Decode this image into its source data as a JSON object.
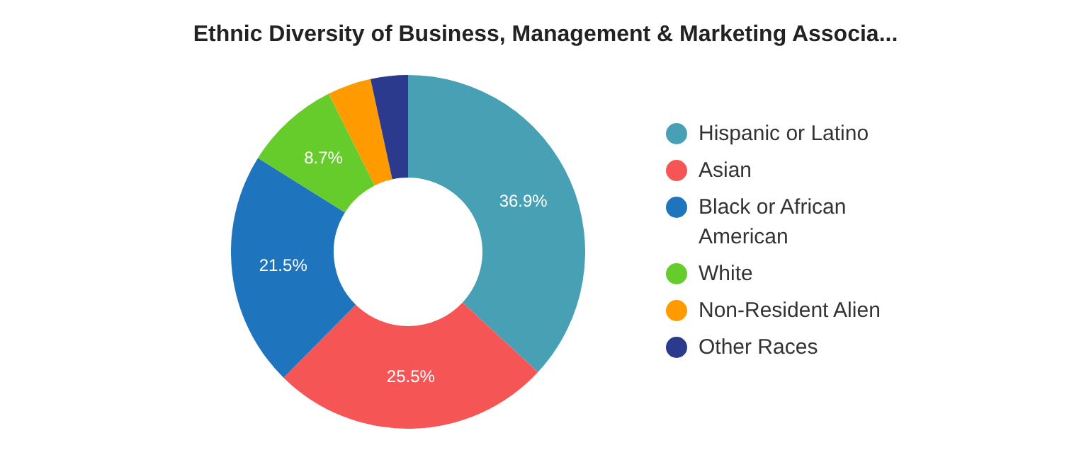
{
  "chart_data": {
    "type": "donut",
    "title": "Ethnic Diversity of Business, Management & Marketing Associa...",
    "categories": [
      "Hispanic or Latino",
      "Asian",
      "Black or African American",
      "White",
      "Non-Resident Alien",
      "Other Races"
    ],
    "values": [
      36.9,
      25.5,
      21.5,
      8.7,
      4.0,
      3.4
    ],
    "value_labels": [
      "36.9%",
      "25.5%",
      "21.5%",
      "8.7%",
      null,
      null
    ],
    "colors": [
      "#48a0b4",
      "#f55555",
      "#1f75bd",
      "#66cc2c",
      "#ff9a00",
      "#2b3a8c"
    ],
    "legend": "right"
  }
}
